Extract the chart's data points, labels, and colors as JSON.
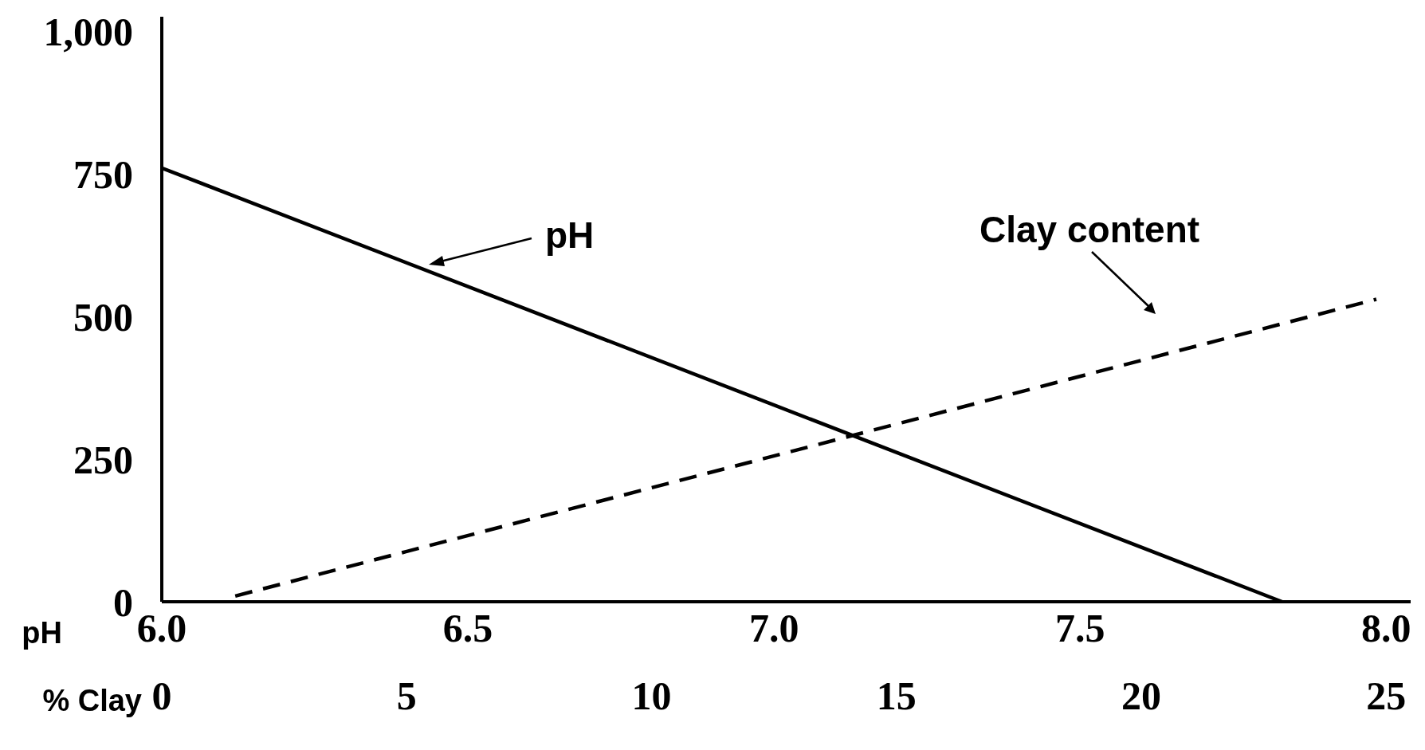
{
  "chart_data": {
    "type": "line",
    "xlabel": "pH",
    "x2label": "% Clay",
    "xlim": [
      6.0,
      8.04
    ],
    "xticks": [
      {
        "value": 6.0,
        "label": "6.0"
      },
      {
        "value": 6.5,
        "label": "6.5"
      },
      {
        "value": 7.0,
        "label": "7.0"
      },
      {
        "value": 7.5,
        "label": "7.5"
      },
      {
        "value": 8.0,
        "label": "8.0"
      }
    ],
    "x2lim": [
      0,
      25.5
    ],
    "x2ticks": [
      0,
      5,
      10,
      15,
      20,
      25
    ],
    "ylim": [
      0,
      1025
    ],
    "yticks": [
      0,
      250,
      500,
      750,
      {
        "value": 1000,
        "label": "1,000"
      }
    ],
    "grid": false,
    "legend": false,
    "marker": "none",
    "annotations": [
      "pH",
      "Clay content"
    ],
    "series": [
      {
        "color": "#000000",
        "line_style": "solid",
        "x": [
          6.0,
          7.83
        ],
        "values": [
          760,
          0
        ]
      },
      {
        "color": "#000000",
        "line_style": "dashed",
        "axis": "x2",
        "x": [
          1.5,
          24.8
        ],
        "values": [
          10,
          530
        ]
      }
    ]
  }
}
